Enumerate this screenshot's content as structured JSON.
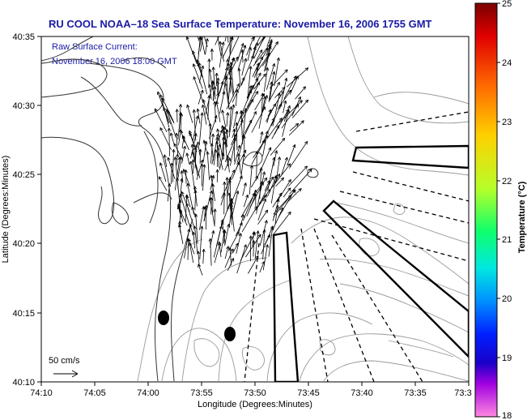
{
  "title": "RU COOL  NOAA–18  Sea Surface Temperature:  November 16, 2006 1755 GMT",
  "annotation": {
    "line1": "Raw Surface Current:",
    "line2": "November 16, 2006 18:00 GMT"
  },
  "axes": {
    "xlabel": "Longitude (Degrees:Minutes)",
    "ylabel": "Latitude (Degrees:Minutes)",
    "xticks": [
      "74:10",
      "74:05",
      "74:00",
      "73:55",
      "73:50",
      "73:45",
      "73:40",
      "73:35",
      "73:3"
    ],
    "yticks": [
      "40:35",
      "40:30",
      "40:25",
      "40:20",
      "40:15",
      "40:10"
    ]
  },
  "scale": {
    "label": "50 cm/s"
  },
  "colorbar": {
    "label": "Temperature (°C)",
    "ticks": [
      "25",
      "24",
      "23",
      "22",
      "21",
      "20",
      "19",
      "18"
    ],
    "range": [
      18,
      25
    ]
  },
  "colors": {
    "title": "#1a1aa6",
    "land_line": "#888888",
    "frame": "#000000"
  }
}
